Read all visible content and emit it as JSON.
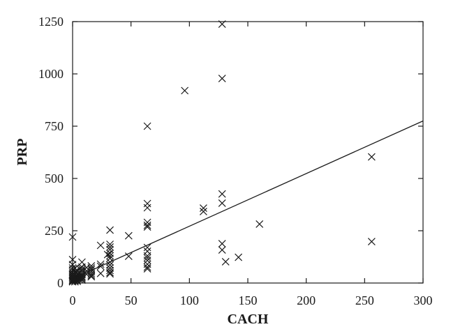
{
  "chart_data": {
    "type": "scatter",
    "title": "",
    "xlabel": "CACH",
    "ylabel": "PRP",
    "xlim": [
      0,
      300
    ],
    "ylim": [
      0,
      1250
    ],
    "xticks": [
      0,
      50,
      100,
      150,
      200,
      250,
      300
    ],
    "yticks": [
      0,
      250,
      500,
      750,
      1000,
      1250
    ],
    "grid": false,
    "marker": "x",
    "points": [
      {
        "x": 128,
        "y": 1238
      },
      {
        "x": 128,
        "y": 978
      },
      {
        "x": 96,
        "y": 920
      },
      {
        "x": 64,
        "y": 750
      },
      {
        "x": 256,
        "y": 603
      },
      {
        "x": 128,
        "y": 426
      },
      {
        "x": 128,
        "y": 382
      },
      {
        "x": 112,
        "y": 358
      },
      {
        "x": 112,
        "y": 342
      },
      {
        "x": 64,
        "y": 380
      },
      {
        "x": 64,
        "y": 360
      },
      {
        "x": 64,
        "y": 290
      },
      {
        "x": 64,
        "y": 276
      },
      {
        "x": 64,
        "y": 268
      },
      {
        "x": 160,
        "y": 282
      },
      {
        "x": 32,
        "y": 253
      },
      {
        "x": 48,
        "y": 226
      },
      {
        "x": 0,
        "y": 220
      },
      {
        "x": 256,
        "y": 198
      },
      {
        "x": 128,
        "y": 188
      },
      {
        "x": 128,
        "y": 158
      },
      {
        "x": 64,
        "y": 170
      },
      {
        "x": 64,
        "y": 152
      },
      {
        "x": 64,
        "y": 130
      },
      {
        "x": 64,
        "y": 120
      },
      {
        "x": 64,
        "y": 108
      },
      {
        "x": 64,
        "y": 90
      },
      {
        "x": 64,
        "y": 76
      },
      {
        "x": 64,
        "y": 68
      },
      {
        "x": 142,
        "y": 123
      },
      {
        "x": 131,
        "y": 102
      },
      {
        "x": 48,
        "y": 128
      },
      {
        "x": 32,
        "y": 185
      },
      {
        "x": 32,
        "y": 172
      },
      {
        "x": 32,
        "y": 160
      },
      {
        "x": 32,
        "y": 142
      },
      {
        "x": 32,
        "y": 130
      },
      {
        "x": 32,
        "y": 118
      },
      {
        "x": 32,
        "y": 100
      },
      {
        "x": 32,
        "y": 86
      },
      {
        "x": 32,
        "y": 72
      },
      {
        "x": 32,
        "y": 60
      },
      {
        "x": 32,
        "y": 50
      },
      {
        "x": 32,
        "y": 44
      },
      {
        "x": 30,
        "y": 136
      },
      {
        "x": 24,
        "y": 180
      },
      {
        "x": 24,
        "y": 90
      },
      {
        "x": 24,
        "y": 80
      },
      {
        "x": 24,
        "y": 46
      },
      {
        "x": 16,
        "y": 82
      },
      {
        "x": 16,
        "y": 72
      },
      {
        "x": 16,
        "y": 64
      },
      {
        "x": 16,
        "y": 54
      },
      {
        "x": 16,
        "y": 44
      },
      {
        "x": 16,
        "y": 36
      },
      {
        "x": 16,
        "y": 30
      },
      {
        "x": 12,
        "y": 74
      },
      {
        "x": 12,
        "y": 58
      },
      {
        "x": 12,
        "y": 42
      },
      {
        "x": 8,
        "y": 100
      },
      {
        "x": 8,
        "y": 76
      },
      {
        "x": 8,
        "y": 66
      },
      {
        "x": 8,
        "y": 58
      },
      {
        "x": 8,
        "y": 48
      },
      {
        "x": 8,
        "y": 40
      },
      {
        "x": 8,
        "y": 32
      },
      {
        "x": 8,
        "y": 26
      },
      {
        "x": 8,
        "y": 20
      },
      {
        "x": 8,
        "y": 14
      },
      {
        "x": 6,
        "y": 68
      },
      {
        "x": 6,
        "y": 48
      },
      {
        "x": 6,
        "y": 36
      },
      {
        "x": 6,
        "y": 24
      },
      {
        "x": 6,
        "y": 16
      },
      {
        "x": 4,
        "y": 60
      },
      {
        "x": 4,
        "y": 44
      },
      {
        "x": 4,
        "y": 32
      },
      {
        "x": 4,
        "y": 22
      },
      {
        "x": 4,
        "y": 14
      },
      {
        "x": 4,
        "y": 8
      },
      {
        "x": 2,
        "y": 70
      },
      {
        "x": 2,
        "y": 54
      },
      {
        "x": 2,
        "y": 40
      },
      {
        "x": 2,
        "y": 30
      },
      {
        "x": 2,
        "y": 20
      },
      {
        "x": 2,
        "y": 12
      },
      {
        "x": 2,
        "y": 6
      },
      {
        "x": 1,
        "y": 36
      },
      {
        "x": 1,
        "y": 24
      },
      {
        "x": 1,
        "y": 16
      },
      {
        "x": 0,
        "y": 112
      },
      {
        "x": 0,
        "y": 88
      },
      {
        "x": 0,
        "y": 72
      },
      {
        "x": 0,
        "y": 62
      },
      {
        "x": 0,
        "y": 52
      },
      {
        "x": 0,
        "y": 44
      },
      {
        "x": 0,
        "y": 38
      },
      {
        "x": 0,
        "y": 32
      },
      {
        "x": 0,
        "y": 26
      },
      {
        "x": 0,
        "y": 20
      },
      {
        "x": 0,
        "y": 14
      },
      {
        "x": 0,
        "y": 10
      },
      {
        "x": 0,
        "y": 6
      }
    ],
    "trend_line": {
      "x": [
        0,
        300
      ],
      "y": [
        20,
        775
      ]
    }
  }
}
